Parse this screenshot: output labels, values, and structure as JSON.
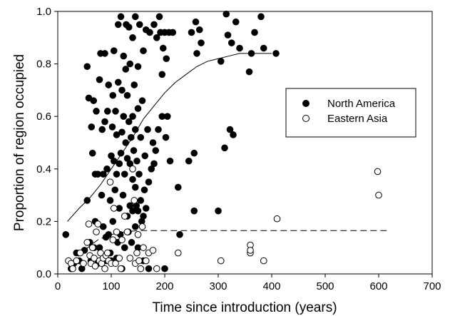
{
  "chart_data": {
    "type": "scatter",
    "xlabel": "Time since introduction (years)",
    "ylabel": "Proportion of region occupied",
    "xlim": [
      0,
      700
    ],
    "ylim": [
      0,
      1.0
    ],
    "x_ticks": [
      0,
      100,
      200,
      300,
      400,
      500,
      600,
      700
    ],
    "y_ticks": [
      0.0,
      0.2,
      0.4,
      0.6,
      0.8,
      1.0
    ],
    "y_tick_labels": [
      "0.0",
      "0.2",
      "0.4",
      "0.6",
      "0.8",
      "1.0"
    ],
    "x_tick_labels": [
      "0",
      "100",
      "200",
      "300",
      "400",
      "500",
      "600",
      "700"
    ],
    "grid": false,
    "legend_position": "right",
    "series": [
      {
        "name": "North America",
        "marker": "filled-circle",
        "color": "#000000",
        "points": [
          [
            15,
            0.15
          ],
          [
            25,
            0.02
          ],
          [
            30,
            0.04
          ],
          [
            35,
            0.08
          ],
          [
            40,
            0.05
          ],
          [
            45,
            0.02
          ],
          [
            50,
            0.09
          ],
          [
            55,
            0.28
          ],
          [
            55,
            0.79
          ],
          [
            58,
            0.67
          ],
          [
            60,
            0.12
          ],
          [
            62,
            0.05
          ],
          [
            63,
            0.56
          ],
          [
            65,
            0.46
          ],
          [
            67,
            0.66
          ],
          [
            68,
            0.1
          ],
          [
            70,
            0.2
          ],
          [
            70,
            0.38
          ],
          [
            72,
            0.62
          ],
          [
            75,
            0.04
          ],
          [
            75,
            0.38
          ],
          [
            78,
            0.1
          ],
          [
            78,
            0.74
          ],
          [
            80,
            0.84
          ],
          [
            82,
            0.3
          ],
          [
            83,
            0.55
          ],
          [
            85,
            0.18
          ],
          [
            85,
            0.38
          ],
          [
            88,
            0.84
          ],
          [
            88,
            0.58
          ],
          [
            90,
            0.05
          ],
          [
            90,
            0.14
          ],
          [
            92,
            0.4
          ],
          [
            93,
            0.62
          ],
          [
            95,
            0.15
          ],
          [
            95,
            0.72
          ],
          [
            98,
            0.08
          ],
          [
            98,
            0.28
          ],
          [
            100,
            0.05
          ],
          [
            100,
            0.45
          ],
          [
            102,
            0.56
          ],
          [
            103,
            0.68
          ],
          [
            103,
            0.2
          ],
          [
            105,
            0.43
          ],
          [
            105,
            0.85
          ],
          [
            107,
            0.32
          ],
          [
            108,
            0.62
          ],
          [
            110,
            0.06
          ],
          [
            110,
            0.38
          ],
          [
            110,
            0.53
          ],
          [
            112,
            0.12
          ],
          [
            113,
            0.73
          ],
          [
            113,
            0.95
          ],
          [
            115,
            0.25
          ],
          [
            115,
            0.42
          ],
          [
            117,
            0.15
          ],
          [
            118,
            0.46
          ],
          [
            118,
            0.98
          ],
          [
            120,
            0.02
          ],
          [
            120,
            0.54
          ],
          [
            120,
            0.7
          ],
          [
            122,
            0.3
          ],
          [
            123,
            0.6
          ],
          [
            123,
            0.83
          ],
          [
            125,
            0.1
          ],
          [
            125,
            0.38
          ],
          [
            127,
            0.5
          ],
          [
            127,
            0.78
          ],
          [
            128,
            0.95
          ],
          [
            130,
            0.22
          ],
          [
            130,
            0.44
          ],
          [
            130,
            0.68
          ],
          [
            132,
            0.16
          ],
          [
            133,
            0.58
          ],
          [
            133,
            0.94
          ],
          [
            135,
            0.26
          ],
          [
            135,
            0.42
          ],
          [
            135,
            0.8
          ],
          [
            137,
            0.52
          ],
          [
            138,
            0.12
          ],
          [
            140,
            0.24
          ],
          [
            140,
            0.36
          ],
          [
            140,
            0.6
          ],
          [
            140,
            0.9
          ],
          [
            142,
            0.47
          ],
          [
            143,
            0.72
          ],
          [
            145,
            0.18
          ],
          [
            145,
            0.33
          ],
          [
            145,
            0.55
          ],
          [
            145,
            0.98
          ],
          [
            147,
            0.26
          ],
          [
            148,
            0.43
          ],
          [
            150,
            0.1
          ],
          [
            150,
            0.24
          ],
          [
            150,
            0.63
          ],
          [
            150,
            0.79
          ],
          [
            152,
            0.38
          ],
          [
            153,
            0.95
          ],
          [
            155,
            0.28
          ],
          [
            155,
            0.52
          ],
          [
            157,
            0.2
          ],
          [
            158,
            0.66
          ],
          [
            160,
            0.05
          ],
          [
            160,
            0.22
          ],
          [
            160,
            0.85
          ],
          [
            162,
            0.32
          ],
          [
            163,
            0.45
          ],
          [
            165,
            0.93
          ],
          [
            165,
            0.25
          ],
          [
            168,
            0.55
          ],
          [
            170,
            0.02
          ],
          [
            170,
            0.35
          ],
          [
            172,
            0.92
          ],
          [
            175,
            0.4
          ],
          [
            178,
            0.5
          ],
          [
            180,
            0.42
          ],
          [
            180,
            0.95
          ],
          [
            183,
            0.47
          ],
          [
            185,
            0.9
          ],
          [
            188,
            0.55
          ],
          [
            190,
            0.98
          ],
          [
            192,
            0.92
          ],
          [
            195,
            0.6
          ],
          [
            195,
            0.76
          ],
          [
            197,
            0.86
          ],
          [
            200,
            0.02
          ],
          [
            200,
            0.92
          ],
          [
            202,
            0.52
          ],
          [
            203,
            0.82
          ],
          [
            205,
            0.6
          ],
          [
            208,
            0.92
          ],
          [
            210,
            0.43
          ],
          [
            215,
            0.92
          ],
          [
            225,
            0.33
          ],
          [
            228,
            0.15
          ],
          [
            245,
            0.43
          ],
          [
            250,
            0.92
          ],
          [
            255,
            0.24
          ],
          [
            255,
            0.46
          ],
          [
            258,
            0.96
          ],
          [
            260,
            0.84
          ],
          [
            265,
            0.93
          ],
          [
            268,
            0.88
          ],
          [
            300,
            0.24
          ],
          [
            305,
            0.81
          ],
          [
            312,
            0.48
          ],
          [
            315,
            0.99
          ],
          [
            318,
            0.91
          ],
          [
            322,
            0.55
          ],
          [
            325,
            0.88
          ],
          [
            328,
            0.53
          ],
          [
            333,
            0.96
          ],
          [
            340,
            0.86
          ],
          [
            358,
            0.77
          ],
          [
            362,
            0.84
          ],
          [
            368,
            0.92
          ],
          [
            380,
            0.98
          ],
          [
            385,
            0.86
          ],
          [
            408,
            0.84
          ]
        ]
      },
      {
        "name": "Eastern Asia",
        "marker": "open-circle",
        "color": "#000000",
        "points": [
          [
            20,
            0.05
          ],
          [
            25,
            0.04
          ],
          [
            28,
            0.02
          ],
          [
            35,
            0.05
          ],
          [
            42,
            0.08
          ],
          [
            48,
            0.04
          ],
          [
            55,
            0.12
          ],
          [
            58,
            0.19
          ],
          [
            60,
            0.07
          ],
          [
            62,
            0.04
          ],
          [
            65,
            0.1
          ],
          [
            68,
            0.06
          ],
          [
            70,
            0.03
          ],
          [
            72,
            0.16
          ],
          [
            75,
            0.19
          ],
          [
            78,
            0.05
          ],
          [
            80,
            0.08
          ],
          [
            82,
            0.04
          ],
          [
            85,
            0.06
          ],
          [
            88,
            0.02
          ],
          [
            90,
            0.07
          ],
          [
            93,
            0.08
          ],
          [
            95,
            0.05
          ],
          [
            98,
            0.35
          ],
          [
            100,
            0.04
          ],
          [
            103,
            0.13
          ],
          [
            105,
            0.25
          ],
          [
            108,
            0.04
          ],
          [
            110,
            0.16
          ],
          [
            115,
            0.06
          ],
          [
            118,
            0.02
          ],
          [
            120,
            0.13
          ],
          [
            125,
            0.22
          ],
          [
            130,
            0.16
          ],
          [
            135,
            0.06
          ],
          [
            140,
            0.4
          ],
          [
            143,
            0.28
          ],
          [
            145,
            0.04
          ],
          [
            148,
            0.08
          ],
          [
            150,
            0.15
          ],
          [
            152,
            0.05
          ],
          [
            155,
            0.02
          ],
          [
            158,
            0.18
          ],
          [
            160,
            0.1
          ],
          [
            165,
            0.05
          ],
          [
            170,
            0.08
          ],
          [
            178,
            0.09
          ],
          [
            185,
            0.02
          ],
          [
            225,
            0.08
          ],
          [
            305,
            0.05
          ],
          [
            360,
            0.11
          ],
          [
            360,
            0.08
          ],
          [
            360,
            0.09
          ],
          [
            385,
            0.05
          ],
          [
            410,
            0.21
          ],
          [
            598,
            0.39
          ],
          [
            600,
            0.3
          ]
        ]
      }
    ],
    "fit_lines": [
      {
        "series": "North America",
        "style": "solid",
        "x": [
          18,
          40,
          60,
          80,
          100,
          120,
          140,
          160,
          180,
          200,
          220,
          240,
          260,
          280,
          300,
          320,
          340,
          360,
          380,
          400
        ],
        "y": [
          0.2,
          0.25,
          0.29,
          0.34,
          0.4,
          0.46,
          0.52,
          0.59,
          0.64,
          0.69,
          0.73,
          0.76,
          0.79,
          0.81,
          0.82,
          0.83,
          0.84,
          0.84,
          0.84,
          0.84
        ]
      },
      {
        "series": "Eastern Asia",
        "style": "dashed",
        "x": [
          25,
          50,
          75,
          100,
          125,
          150,
          200,
          300,
          400,
          500,
          620
        ],
        "y": [
          0.04,
          0.09,
          0.13,
          0.15,
          0.16,
          0.165,
          0.165,
          0.165,
          0.165,
          0.165,
          0.165
        ]
      }
    ]
  }
}
